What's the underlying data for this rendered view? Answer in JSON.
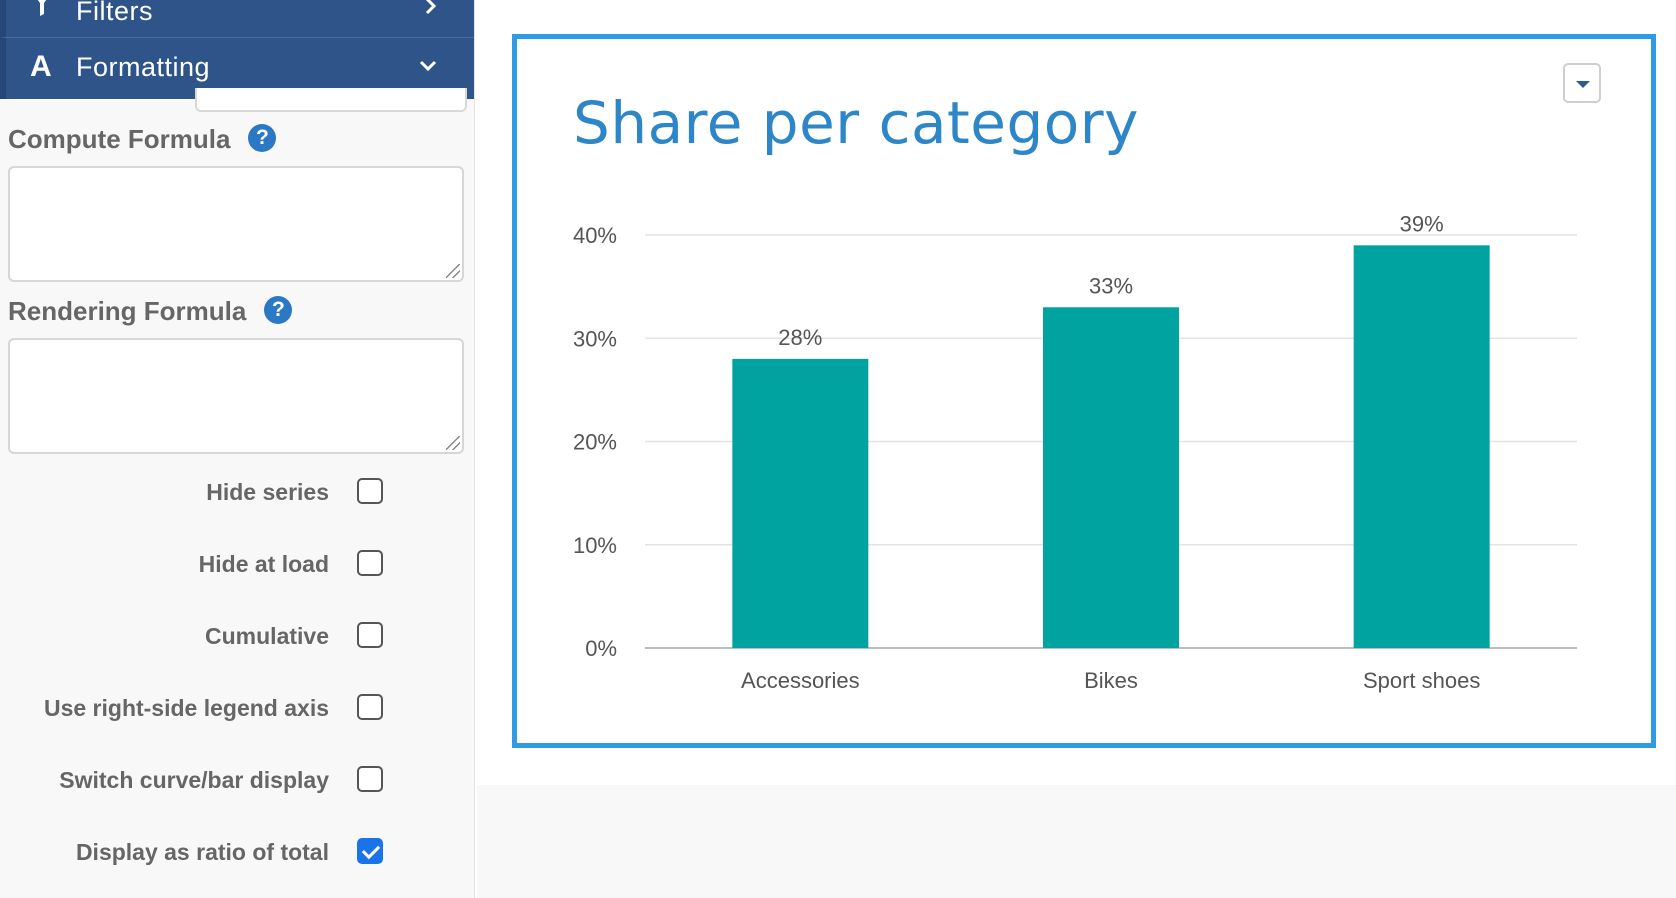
{
  "sidebar": {
    "nav": {
      "filters": {
        "icon": "filter-icon",
        "label": "Filters",
        "chevron": "›"
      },
      "formatting": {
        "icon": "formatting-icon",
        "label": "Formatting",
        "chevron": "⌄"
      }
    },
    "compute_formula": {
      "label": "Compute Formula",
      "help": "?",
      "value": ""
    },
    "rendering_formula": {
      "label": "Rendering Formula",
      "help": "?",
      "value": ""
    },
    "options": [
      {
        "label": "Hide series",
        "checked": false
      },
      {
        "label": "Hide at load",
        "checked": false
      },
      {
        "label": "Cumulative",
        "checked": false
      },
      {
        "label": "Use right-side legend axis",
        "checked": false
      },
      {
        "label": "Switch curve/bar display",
        "checked": false
      },
      {
        "label": "Display as ratio of total",
        "checked": true
      }
    ]
  },
  "chart_card": {
    "menu_icon": "caret-down-icon"
  },
  "chart_data": {
    "type": "bar",
    "title": "Share per category",
    "categories": [
      "Accessories",
      "Bikes",
      "Sport shoes"
    ],
    "values": [
      28,
      33,
      39
    ],
    "value_labels": [
      "28%",
      "33%",
      "39%"
    ],
    "yticks": [
      "0%",
      "10%",
      "20%",
      "30%",
      "40%"
    ],
    "ylim": [
      0,
      40
    ],
    "grid": true,
    "bar_color": "#00a39f"
  },
  "colors": {
    "nav_bg": "#2e5489",
    "title": "#2d86c8",
    "card_border": "#2d9be6",
    "checkbox_checked": "#1a73e8"
  }
}
